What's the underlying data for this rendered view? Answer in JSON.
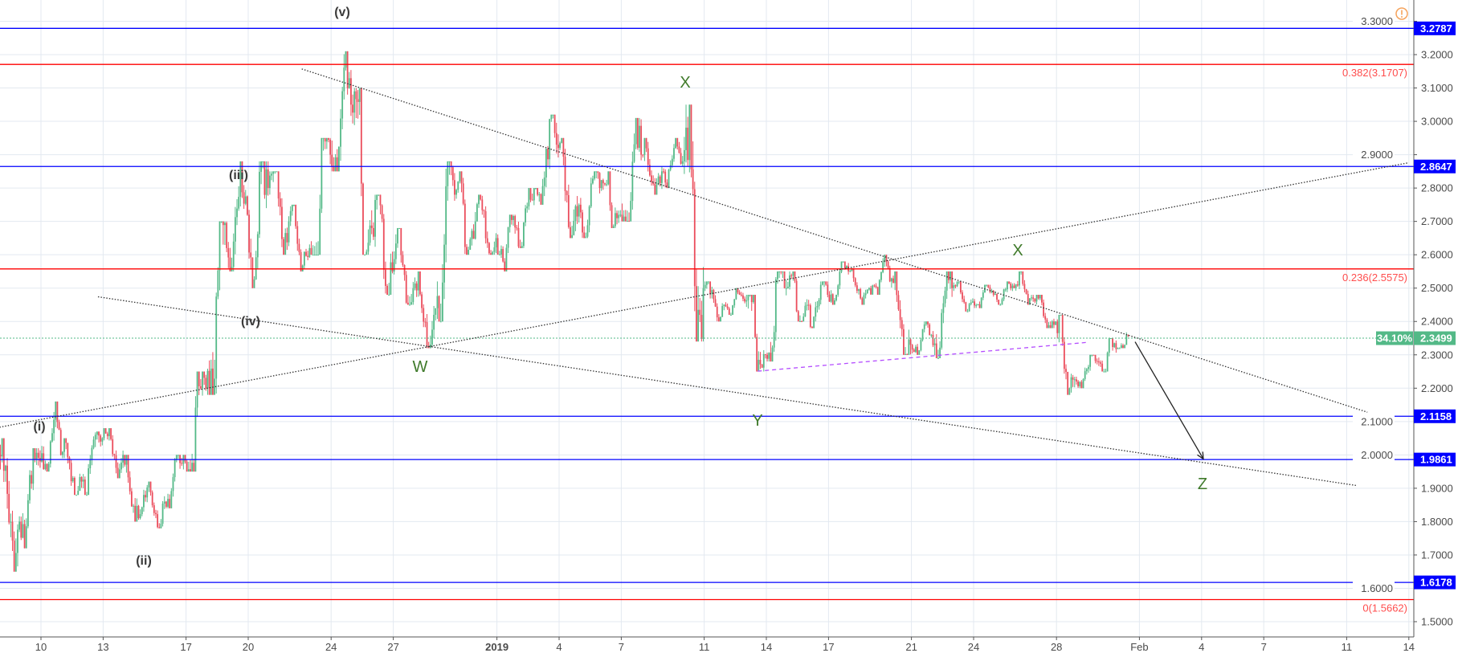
{
  "chart_data": {
    "type": "candlestick",
    "price_axis": {
      "range": [
        1.45,
        3.33
      ],
      "ticks": [
        "3.3000",
        "3.2000",
        "3.1000",
        "3.0000",
        "2.9000",
        "2.8000",
        "2.7000",
        "2.6000",
        "2.5000",
        "2.4000",
        "2.3000",
        "2.2000",
        "2.1000",
        "2.0000",
        "1.9000",
        "1.8000",
        "1.7000",
        "1.6000",
        "1.5000"
      ]
    },
    "time_axis": {
      "ticks": [
        {
          "date": "2018-12-10",
          "label": "10"
        },
        {
          "date": "2018-12-13",
          "label": "13"
        },
        {
          "date": "2018-12-17",
          "label": "17"
        },
        {
          "date": "2018-12-20",
          "label": "20"
        },
        {
          "date": "2018-12-24",
          "label": "24"
        },
        {
          "date": "2018-12-27",
          "label": "27"
        },
        {
          "date": "2019-01-01",
          "label": "2019"
        },
        {
          "date": "2019-01-04",
          "label": "4"
        },
        {
          "date": "2019-01-07",
          "label": "7"
        },
        {
          "date": "2019-01-11",
          "label": "11"
        },
        {
          "date": "2019-01-14",
          "label": "14"
        },
        {
          "date": "2019-01-17",
          "label": "17"
        },
        {
          "date": "2019-01-21",
          "label": "21"
        },
        {
          "date": "2019-01-24",
          "label": "24"
        },
        {
          "date": "2019-01-28",
          "label": "28"
        },
        {
          "date": "2019-02-01",
          "label": "Feb"
        },
        {
          "date": "2019-02-04",
          "label": "4"
        },
        {
          "date": "2019-02-07",
          "label": "7"
        },
        {
          "date": "2019-02-11",
          "label": "11"
        },
        {
          "date": "2019-02-14",
          "label": "14"
        }
      ]
    },
    "colors": {
      "up": "#53b987",
      "down": "#eb4d5c",
      "grid": "#e3e9f0",
      "support": "#0000ff",
      "fib": "#ff0000",
      "current": "#53b987",
      "trend": "#333333",
      "channel": "#b44dff",
      "warning": "#f5a35c"
    },
    "daily_ohlc": [
      [
        "2018-12-08",
        2.0,
        2.05,
        1.65,
        1.8
      ],
      [
        "2018-12-09",
        1.8,
        2.02,
        1.72,
        1.98
      ],
      [
        "2018-12-10",
        1.98,
        2.16,
        1.95,
        2.0
      ],
      [
        "2018-12-11",
        2.0,
        2.05,
        1.88,
        1.92
      ],
      [
        "2018-12-12",
        1.92,
        2.07,
        1.88,
        2.05
      ],
      [
        "2018-12-13",
        2.05,
        2.08,
        1.93,
        2.0
      ],
      [
        "2018-12-14",
        2.0,
        2.0,
        1.8,
        1.88
      ],
      [
        "2018-12-15",
        1.88,
        1.92,
        1.78,
        1.86
      ],
      [
        "2018-12-16",
        1.86,
        2.0,
        1.84,
        1.98
      ],
      [
        "2018-12-17",
        1.98,
        2.25,
        1.95,
        2.2
      ],
      [
        "2018-12-18",
        2.2,
        2.7,
        2.18,
        2.62
      ],
      [
        "2018-12-19",
        2.62,
        2.88,
        2.55,
        2.72
      ],
      [
        "2018-12-20",
        2.72,
        2.88,
        2.5,
        2.8
      ],
      [
        "2018-12-21",
        2.8,
        2.85,
        2.6,
        2.7
      ],
      [
        "2018-12-22",
        2.7,
        2.75,
        2.55,
        2.62
      ],
      [
        "2018-12-23",
        2.62,
        2.95,
        2.6,
        2.9
      ],
      [
        "2018-12-24",
        2.9,
        3.21,
        2.85,
        3.05
      ],
      [
        "2018-12-25",
        3.05,
        3.1,
        2.6,
        2.68
      ],
      [
        "2018-12-26",
        2.68,
        2.78,
        2.48,
        2.55
      ],
      [
        "2018-12-27",
        2.55,
        2.68,
        2.45,
        2.5
      ],
      [
        "2018-12-28",
        2.5,
        2.55,
        2.32,
        2.42
      ],
      [
        "2018-12-29",
        2.42,
        2.88,
        2.4,
        2.78
      ],
      [
        "2018-12-30",
        2.78,
        2.85,
        2.6,
        2.7
      ],
      [
        "2018-12-31",
        2.7,
        2.78,
        2.6,
        2.65
      ],
      [
        "2019-01-01",
        2.65,
        2.72,
        2.55,
        2.68
      ],
      [
        "2019-01-02",
        2.68,
        2.8,
        2.62,
        2.78
      ],
      [
        "2019-01-03",
        2.78,
        3.02,
        2.75,
        2.92
      ],
      [
        "2019-01-04",
        2.92,
        2.95,
        2.65,
        2.75
      ],
      [
        "2019-01-05",
        2.75,
        2.85,
        2.65,
        2.8
      ],
      [
        "2019-01-06",
        2.8,
        2.85,
        2.68,
        2.72
      ],
      [
        "2019-01-07",
        2.72,
        3.01,
        2.7,
        2.9
      ],
      [
        "2019-01-08",
        2.9,
        2.95,
        2.78,
        2.85
      ],
      [
        "2019-01-09",
        2.85,
        2.95,
        2.8,
        2.88
      ],
      [
        "2019-01-10",
        2.88,
        3.05,
        2.34,
        2.5
      ],
      [
        "2019-01-11",
        2.5,
        2.52,
        2.4,
        2.45
      ],
      [
        "2019-01-12",
        2.45,
        2.5,
        2.42,
        2.46
      ],
      [
        "2019-01-13",
        2.46,
        2.48,
        2.25,
        2.3
      ],
      [
        "2019-01-14",
        2.3,
        2.55,
        2.28,
        2.5
      ],
      [
        "2019-01-15",
        2.5,
        2.55,
        2.4,
        2.45
      ],
      [
        "2019-01-16",
        2.45,
        2.52,
        2.38,
        2.48
      ],
      [
        "2019-01-17",
        2.48,
        2.58,
        2.45,
        2.55
      ],
      [
        "2019-01-18",
        2.55,
        2.56,
        2.45,
        2.5
      ],
      [
        "2019-01-19",
        2.5,
        2.6,
        2.48,
        2.52
      ],
      [
        "2019-01-20",
        2.52,
        2.55,
        2.3,
        2.33
      ],
      [
        "2019-01-21",
        2.33,
        2.4,
        2.3,
        2.36
      ],
      [
        "2019-01-22",
        2.36,
        2.55,
        2.29,
        2.5
      ],
      [
        "2019-01-23",
        2.5,
        2.52,
        2.43,
        2.46
      ],
      [
        "2019-01-24",
        2.46,
        2.51,
        2.44,
        2.48
      ],
      [
        "2019-01-25",
        2.48,
        2.52,
        2.45,
        2.5
      ],
      [
        "2019-01-26",
        2.5,
        2.55,
        2.45,
        2.46
      ],
      [
        "2019-01-27",
        2.46,
        2.48,
        2.38,
        2.4
      ],
      [
        "2019-01-28",
        2.4,
        2.42,
        2.18,
        2.22
      ],
      [
        "2019-01-29",
        2.22,
        2.3,
        2.2,
        2.28
      ],
      [
        "2019-01-30",
        2.28,
        2.35,
        2.25,
        2.32
      ],
      [
        "2019-01-31",
        2.32,
        2.42,
        2.32,
        2.35
      ]
    ],
    "support_levels": [
      {
        "price": 3.2787,
        "label": "3.2787"
      },
      {
        "price": 2.8647,
        "label": "2.8647"
      },
      {
        "price": 2.1158,
        "label": "2.1158"
      },
      {
        "price": 1.9861,
        "label": "1.9861"
      },
      {
        "price": 1.6178,
        "label": "1.6178"
      }
    ],
    "fib_levels": [
      {
        "price": 3.1707,
        "label": "0.382(3.1707)"
      },
      {
        "price": 2.5575,
        "label": "0.236(2.5575)"
      },
      {
        "price": 1.5662,
        "label": "0(1.5662)"
      }
    ],
    "current_price": {
      "price": 2.3499,
      "label": "2.3499",
      "change_label": "34.10%"
    },
    "trendlines": [
      {
        "name": "upper-descending",
        "from": [
          "2018-12-22 14:00",
          3.157
        ],
        "to": [
          "2019-02-12 00:00",
          2.128
        ],
        "style": "dotted"
      },
      {
        "name": "lower-descending",
        "from": [
          "2018-12-12 18:00",
          2.474
        ],
        "to": [
          "2019-02-11 12:00",
          1.908
        ],
        "style": "dotted"
      },
      {
        "name": "ascending",
        "from": [
          "2018-12-08 00:00",
          2.083
        ],
        "to": [
          "2019-02-14 00:00",
          2.876
        ],
        "style": "dotted"
      },
      {
        "name": "channel",
        "from": [
          "2019-01-13 14:00",
          2.251
        ],
        "to": [
          "2019-01-29 10:00",
          2.337
        ],
        "style": "dashed"
      }
    ],
    "projection_arrow": {
      "from": [
        "2019-01-31 19:00",
        2.339
      ],
      "to": [
        "2019-02-04 02:00",
        1.988
      ]
    },
    "wave_labels": [
      {
        "text": "(i)",
        "kind": "roman"
      },
      {
        "text": "(ii)",
        "kind": "roman"
      },
      {
        "text": "(iii)",
        "kind": "roman"
      },
      {
        "text": "(iv)",
        "kind": "roman"
      },
      {
        "text": "(v)",
        "kind": "roman"
      },
      {
        "text": "W",
        "kind": "letter"
      },
      {
        "text": "X",
        "kind": "letter"
      },
      {
        "text": "Y",
        "kind": "letter"
      },
      {
        "text": "X",
        "kind": "letter"
      },
      {
        "text": "Z",
        "kind": "letter"
      }
    ]
  }
}
